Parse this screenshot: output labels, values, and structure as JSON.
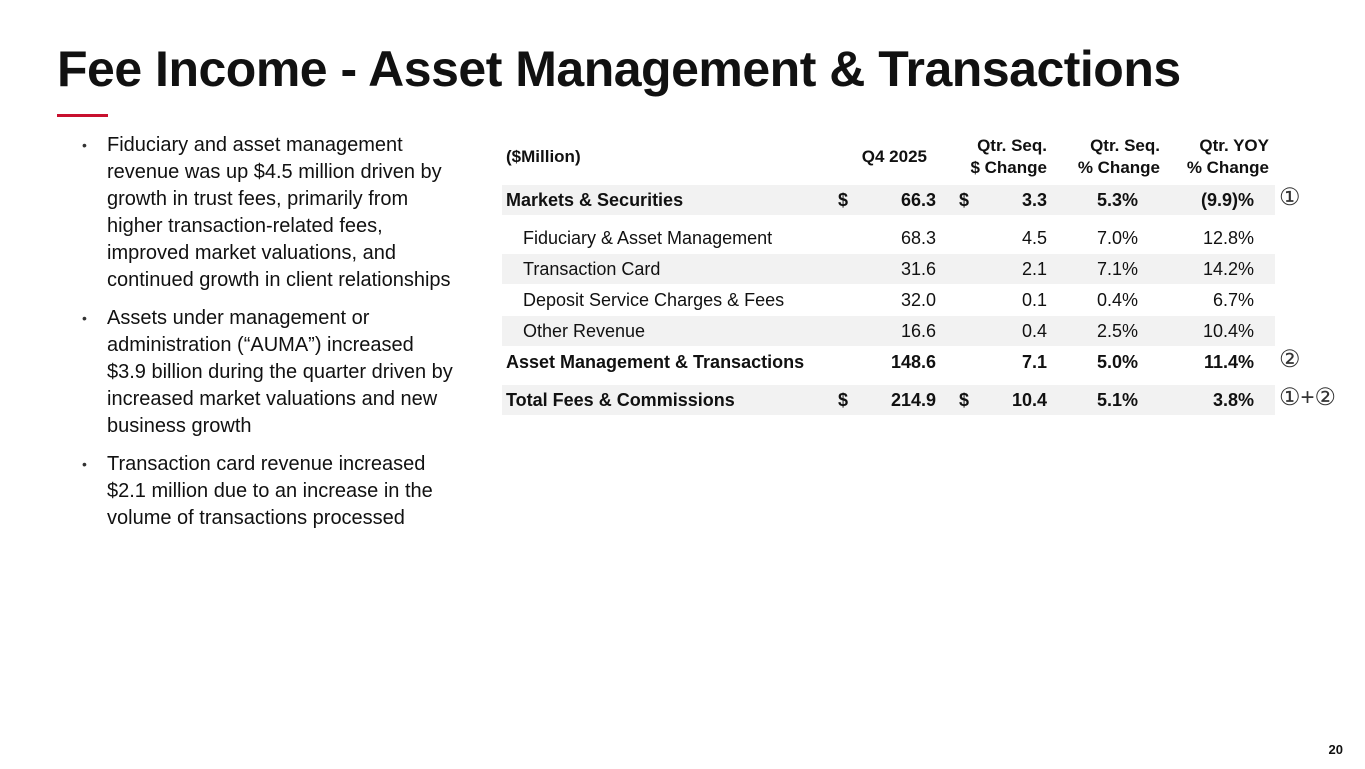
{
  "header": {
    "title": "Fee Income - Asset Management & Transactions"
  },
  "bullets": [
    "Fiduciary and asset management revenue was up $4.5 million driven by growth in trust fees, primarily from higher transaction-related fees, improved market valuations, and continued growth in client relationships",
    "Assets under management or administration (“AUMA”) increased $3.9 billion during the quarter driven by increased market valuations and new business growth",
    "Transaction card revenue increased $2.1 million due to an increase in the volume of transactions processed"
  ],
  "table": {
    "columns": [
      [
        "($Million)"
      ],
      [
        "Q4 2025"
      ],
      [
        "Qtr. Seq.",
        "$ Change"
      ],
      [
        "Qtr. Seq.",
        "% Change"
      ],
      [
        "Qtr. YOY",
        "% Change"
      ]
    ],
    "rows": [
      {
        "label": "Markets & Securities",
        "bold": true,
        "shaded": true,
        "cells": {
          "sign1": "$",
          "q4": "66.3",
          "sign2": "$",
          "seq": "3.3",
          "seq_pct": "5.3%",
          "yoy": "(9.9)%"
        },
        "note": "①"
      },
      {
        "label": "Fiduciary & Asset Management",
        "indent": true,
        "cells": {
          "q4": "68.3",
          "seq": "4.5",
          "seq_pct": "7.0%",
          "yoy": "12.8%"
        }
      },
      {
        "label": "Transaction Card",
        "indent": true,
        "shaded": true,
        "cells": {
          "q4": "31.6",
          "seq": "2.1",
          "seq_pct": "7.1%",
          "yoy": "14.2%"
        }
      },
      {
        "label": "Deposit Service Charges & Fees",
        "indent": true,
        "cells": {
          "q4": "32.0",
          "seq": "0.1",
          "seq_pct": "0.4%",
          "yoy": "6.7%"
        }
      },
      {
        "label": "Other Revenue",
        "indent": true,
        "shaded": true,
        "cells": {
          "q4": "16.6",
          "seq": "0.4",
          "seq_pct": "2.5%",
          "yoy": "10.4%"
        }
      },
      {
        "label": "Asset Management & Transactions",
        "bold": true,
        "cells": {
          "q4": "148.6",
          "seq": "7.1",
          "seq_pct": "5.0%",
          "yoy": "11.4%"
        },
        "note": "②"
      },
      {
        "label": "Total Fees & Commissions",
        "bold": true,
        "shaded": true,
        "gap": true,
        "cells": {
          "sign1": "$",
          "q4": "214.9",
          "sign2": "$",
          "seq": "10.4",
          "seq_pct": "5.1%",
          "yoy": "3.8%"
        },
        "note": "①+②"
      }
    ]
  },
  "footer": {
    "page": "20"
  }
}
